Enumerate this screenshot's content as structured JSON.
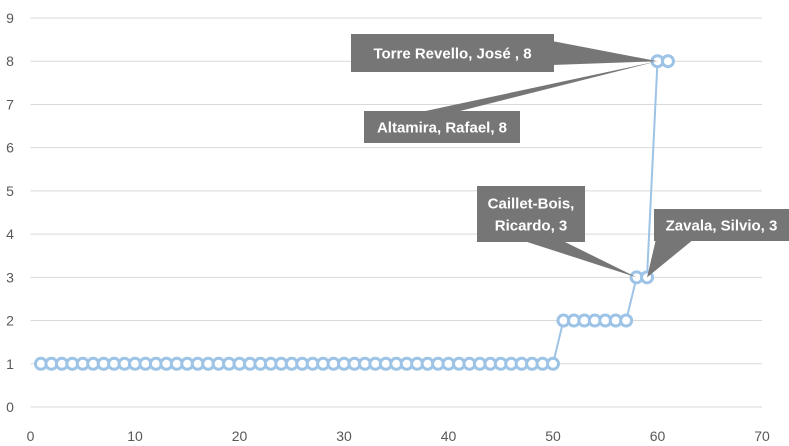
{
  "chart_data": {
    "type": "scatter",
    "title": "",
    "xlabel": "",
    "ylabel": "",
    "xlim": [
      0,
      70
    ],
    "ylim": [
      0,
      9
    ],
    "x_ticks": [
      0,
      10,
      20,
      30,
      40,
      50,
      60,
      70
    ],
    "y_ticks": [
      0,
      1,
      2,
      3,
      4,
      5,
      6,
      7,
      8,
      9
    ],
    "grid": "horizontal",
    "legend": "none",
    "series": [
      {
        "style": "line with hollow circle markers",
        "color": "#9DC3E6",
        "x": [
          1,
          2,
          3,
          4,
          5,
          6,
          7,
          8,
          9,
          10,
          11,
          12,
          13,
          14,
          15,
          16,
          17,
          18,
          19,
          20,
          21,
          22,
          23,
          24,
          25,
          26,
          27,
          28,
          29,
          30,
          31,
          32,
          33,
          34,
          35,
          36,
          37,
          38,
          39,
          40,
          41,
          42,
          43,
          44,
          45,
          46,
          47,
          48,
          49,
          50,
          51,
          52,
          53,
          54,
          55,
          56,
          57,
          58,
          59,
          60,
          61
        ],
        "y": [
          1,
          1,
          1,
          1,
          1,
          1,
          1,
          1,
          1,
          1,
          1,
          1,
          1,
          1,
          1,
          1,
          1,
          1,
          1,
          1,
          1,
          1,
          1,
          1,
          1,
          1,
          1,
          1,
          1,
          1,
          1,
          1,
          1,
          1,
          1,
          1,
          1,
          1,
          1,
          1,
          1,
          1,
          1,
          1,
          1,
          1,
          1,
          1,
          1,
          1,
          2,
          2,
          2,
          2,
          2,
          2,
          2,
          3,
          3,
          8,
          8
        ]
      }
    ],
    "annotations": [
      {
        "lines": [
          "Torre Revello, José , 8"
        ],
        "point": [
          60,
          8
        ]
      },
      {
        "lines": [
          "Altamira, Rafael, 8"
        ],
        "point": [
          60,
          8
        ]
      },
      {
        "lines": [
          "Caillet-Bois,",
          "Ricardo, 3"
        ],
        "point": [
          58,
          3
        ]
      },
      {
        "lines": [
          "Zavala, Silvio, 3"
        ],
        "point": [
          59,
          3
        ]
      }
    ],
    "colors": {
      "callout_fill": "#767676",
      "callout_text": "#ffffff",
      "axis_text": "#595959",
      "grid": "#d9d9d9"
    }
  }
}
